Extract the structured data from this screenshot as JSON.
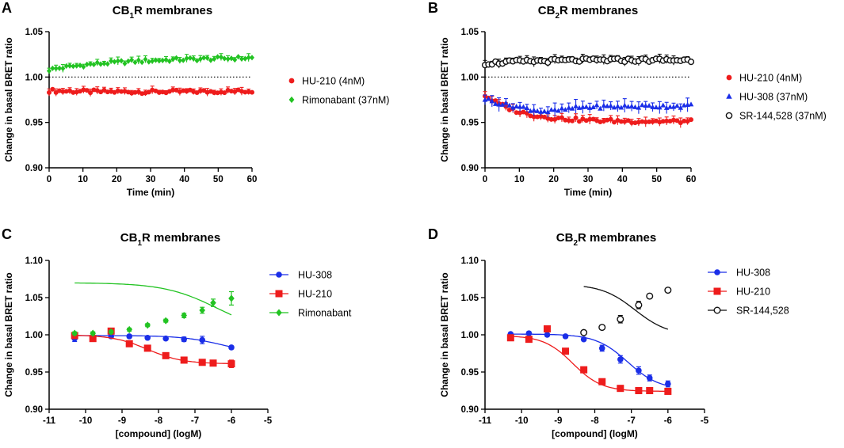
{
  "chart_data": [
    {
      "panel": "A",
      "type": "scatter",
      "title_main": "CB",
      "title_sub": "1",
      "title_rest": "R membranes",
      "xlabel": "Time (min)",
      "ylabel": "Change in basal BRET ratio",
      "xlim": [
        0,
        60
      ],
      "ylim": [
        0.9,
        1.05
      ],
      "xticks": [
        0,
        10,
        20,
        30,
        40,
        50,
        60
      ],
      "yticks": [
        0.9,
        0.95,
        1.0,
        1.05
      ],
      "ytick_labels": [
        "0.90",
        "0.95",
        "1.00",
        "1.05"
      ],
      "baseline": 1.0,
      "legend_position": "right",
      "series": [
        {
          "name": "HU-210 (4nM)",
          "color": "#ee1c1c",
          "marker": "circle",
          "start": 0.985,
          "end": 0.986,
          "mid": 0.982,
          "err": 0.004,
          "points": 60
        },
        {
          "name": "Rimonabant (37nM)",
          "color": "#22c322",
          "marker": "diamond",
          "start": 1.008,
          "end": 1.023,
          "mid": 1.019,
          "err": 0.004,
          "points": 60
        }
      ]
    },
    {
      "panel": "B",
      "type": "scatter",
      "title_main": "CB",
      "title_sub": "2",
      "title_rest": "R membranes",
      "xlabel": "Time (min)",
      "ylabel": "Change in basal BRET ratio",
      "xlim": [
        0,
        60
      ],
      "ylim": [
        0.9,
        1.05
      ],
      "xticks": [
        0,
        10,
        20,
        30,
        40,
        50,
        60
      ],
      "yticks": [
        0.9,
        0.95,
        1.0,
        1.05
      ],
      "ytick_labels": [
        "0.90",
        "0.95",
        "1.00",
        "1.05"
      ],
      "baseline": 1.0,
      "legend_position": "right",
      "series": [
        {
          "name": "HU-210 (4nM)",
          "color": "#ee1c1c",
          "marker": "circle",
          "start": 0.98,
          "end": 0.951,
          "decay": "fast",
          "err": 0.005,
          "points": 60
        },
        {
          "name": "HU-308 (37nM)",
          "color": "#1a2ee8",
          "marker": "triangle",
          "start": 0.976,
          "end": 0.967,
          "decay": "dip",
          "err": 0.007,
          "points": 60
        },
        {
          "name": "SR-144,528 (37nM)",
          "color": "#111111",
          "marker": "open-circle",
          "start": 1.015,
          "end": 1.018,
          "mid": 1.02,
          "err": 0.005,
          "points": 60
        }
      ]
    },
    {
      "panel": "C",
      "type": "line",
      "title_main": "CB",
      "title_sub": "1",
      "title_rest": "R membranes",
      "xlabel": "[compound] (logM)",
      "ylabel": "Change in basal BRET ratio",
      "xlim": [
        -11,
        -5
      ],
      "ylim": [
        0.9,
        1.1
      ],
      "xticks": [
        -11,
        -10,
        -9,
        -8,
        -7,
        -6,
        -5
      ],
      "yticks": [
        0.9,
        0.95,
        1.0,
        1.05,
        1.1
      ],
      "ytick_labels": [
        "0.90",
        "0.95",
        "1.00",
        "1.05",
        "1.10"
      ],
      "legend_position": "right",
      "series": [
        {
          "name": "HU-308",
          "color": "#1a2ee8",
          "marker": "circle",
          "x": [
            -10.3,
            -9.8,
            -9.3,
            -8.8,
            -8.3,
            -7.8,
            -7.3,
            -6.8,
            -6.0
          ],
          "y": [
            0.995,
            0.997,
            0.998,
            0.998,
            0.996,
            0.995,
            0.994,
            0.993,
            0.983
          ],
          "err": [
            0.004,
            0.002,
            0.002,
            0.002,
            0.002,
            0.002,
            0.003,
            0.005,
            0.002
          ],
          "fit": {
            "bottom": 0.975,
            "top": 0.999,
            "logEC50": -6.3,
            "hill": 0.8
          }
        },
        {
          "name": "HU-210",
          "color": "#ee1c1c",
          "marker": "square",
          "x": [
            -10.3,
            -9.8,
            -9.3,
            -8.8,
            -8.3,
            -7.8,
            -7.3,
            -6.8,
            -6.5,
            -6.0
          ],
          "y": [
            0.999,
            0.995,
            1.005,
            0.988,
            0.982,
            0.972,
            0.966,
            0.963,
            0.962,
            0.961
          ],
          "err": [
            0.003,
            0.002,
            0.003,
            0.002,
            0.002,
            0.002,
            0.003,
            0.003,
            0.002,
            0.005
          ],
          "fit": {
            "bottom": 0.961,
            "top": 1.0,
            "logEC50": -8.3,
            "hill": 0.9
          }
        },
        {
          "name": "Rimonabant",
          "color": "#22c322",
          "marker": "diamond",
          "x": [
            -10.3,
            -9.8,
            -9.3,
            -8.8,
            -8.3,
            -7.8,
            -7.3,
            -6.8,
            -6.5,
            -6.0
          ],
          "y": [
            1.002,
            1.002,
            1.004,
            1.007,
            1.013,
            1.019,
            1.026,
            1.033,
            1.043,
            1.049
          ],
          "err": [
            0.002,
            0.002,
            0.002,
            0.002,
            0.002,
            0.002,
            0.003,
            0.004,
            0.005,
            0.009
          ],
          "fit": {
            "bottom": 1.002,
            "top": 1.07,
            "logEC50": -6.4,
            "hill": 0.6
          }
        }
      ]
    },
    {
      "panel": "D",
      "type": "line",
      "title_main": "CB",
      "title_sub": "2",
      "title_rest": "R membranes",
      "xlabel": "[compound] (logM)",
      "ylabel": "Change in basal BRET ratio",
      "xlim": [
        -11,
        -5
      ],
      "ylim": [
        0.9,
        1.1
      ],
      "xticks": [
        -11,
        -10,
        -9,
        -8,
        -7,
        -6,
        -5
      ],
      "yticks": [
        0.9,
        0.95,
        1.0,
        1.05,
        1.1
      ],
      "ytick_labels": [
        "0.90",
        "0.95",
        "1.00",
        "1.05",
        "1.10"
      ],
      "legend_position": "right",
      "series": [
        {
          "name": "HU-308",
          "color": "#1a2ee8",
          "marker": "circle",
          "x": [
            -10.3,
            -9.8,
            -9.3,
            -8.8,
            -8.3,
            -7.8,
            -7.3,
            -6.8,
            -6.5,
            -6.0
          ],
          "y": [
            1.001,
            1.002,
            1.0,
            0.998,
            0.994,
            0.982,
            0.967,
            0.952,
            0.942,
            0.934
          ],
          "err": [
            0.002,
            0.002,
            0.002,
            0.002,
            0.002,
            0.004,
            0.005,
            0.005,
            0.004,
            0.004
          ],
          "fit": {
            "bottom": 0.926,
            "top": 1.001,
            "logEC50": -7.1,
            "hill": 1.0
          }
        },
        {
          "name": "HU-210",
          "color": "#ee1c1c",
          "marker": "square",
          "x": [
            -10.3,
            -9.8,
            -9.3,
            -8.8,
            -8.3,
            -7.8,
            -7.3,
            -6.8,
            -6.5,
            -6.0
          ],
          "y": [
            0.996,
            0.994,
            1.008,
            0.978,
            0.953,
            0.937,
            0.928,
            0.925,
            0.925,
            0.924
          ],
          "err": [
            0.003,
            0.003,
            0.003,
            0.002,
            0.002,
            0.002,
            0.002,
            0.002,
            0.002,
            0.003
          ],
          "fit": {
            "bottom": 0.924,
            "top": 0.999,
            "logEC50": -8.6,
            "hill": 1.1
          }
        },
        {
          "name": "SR-144,528",
          "color": "#111111",
          "marker": "open-circle",
          "x": [
            -8.3,
            -7.8,
            -7.3,
            -6.8,
            -6.5,
            -6.0
          ],
          "y": [
            1.003,
            1.01,
            1.021,
            1.04,
            1.052,
            1.06
          ],
          "err": [
            0.002,
            0.003,
            0.005,
            0.005,
            0.003,
            0.002
          ],
          "fit": {
            "bottom": 0.999,
            "top": 1.068,
            "logEC50": -6.9,
            "hill": 0.95
          }
        }
      ]
    }
  ]
}
